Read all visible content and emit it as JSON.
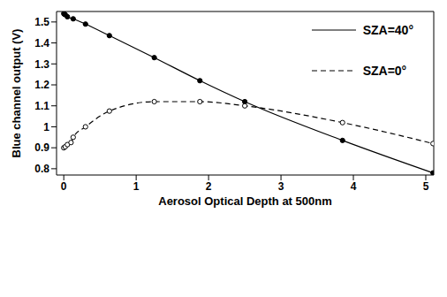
{
  "chart_data": {
    "type": "line",
    "x_label": "Aerosol Optical Depth at 500nm",
    "y_label": "Blue channel output (V)",
    "xlim": [
      -0.1,
      5.11
    ],
    "xticks": [
      0,
      1,
      2,
      3,
      4,
      5
    ],
    "ylim": [
      0.77,
      1.55
    ],
    "yticks": [
      0.8,
      0.9,
      1,
      1.1,
      1.2,
      1.3,
      1.4,
      1.5
    ],
    "grid": false,
    "legend": "upper right",
    "series": [
      {
        "name": "SZA=40°",
        "color": "#000000",
        "line_style": "solid",
        "marker": "filled_circle",
        "x": [
          0,
          0.01,
          0.02,
          0.05,
          0.13,
          0.3,
          0.63,
          1.25,
          1.88,
          2.5,
          3.85,
          5.1
        ],
        "values": [
          1.54,
          1.537,
          1.535,
          1.525,
          1.515,
          1.49,
          1.435,
          1.33,
          1.22,
          1.12,
          0.935,
          0.78
        ]
      },
      {
        "name": "SZA=0°",
        "color": "#000000",
        "line_style": "dashed",
        "marker": "open_circle",
        "x": [
          0,
          0.02,
          0.05,
          0.1,
          0.13,
          0.3,
          0.63,
          1.25,
          1.88,
          2.5,
          3.85,
          5.1
        ],
        "values": [
          0.9,
          0.905,
          0.915,
          0.925,
          0.95,
          1.0,
          1.075,
          1.12,
          1.12,
          1.1,
          1.02,
          0.92
        ]
      }
    ]
  }
}
